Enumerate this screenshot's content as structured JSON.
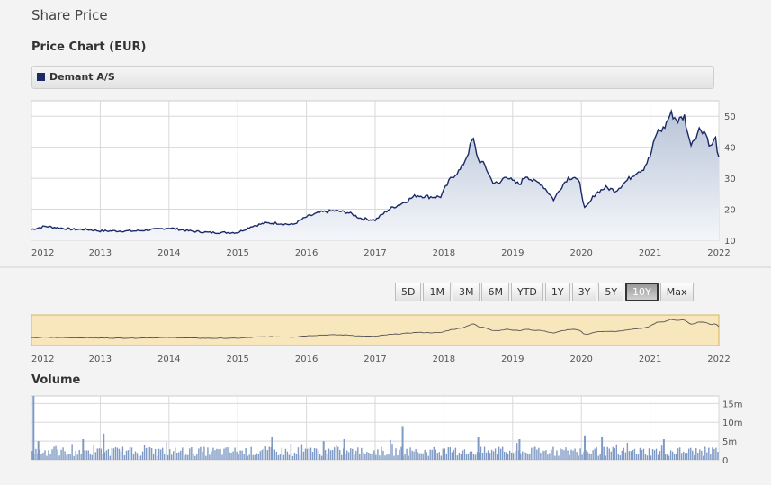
{
  "page": {
    "title": "Share Price",
    "chart_title": "Price Chart (EUR)",
    "volume_title": "Volume"
  },
  "legend": {
    "label": "Demant A/S",
    "color": "#1b2a66"
  },
  "periods": [
    {
      "label": "5D",
      "active": false
    },
    {
      "label": "1M",
      "active": false
    },
    {
      "label": "3M",
      "active": false
    },
    {
      "label": "6M",
      "active": false
    },
    {
      "label": "YTD",
      "active": false
    },
    {
      "label": "1Y",
      "active": false
    },
    {
      "label": "3Y",
      "active": false
    },
    {
      "label": "5Y",
      "active": false
    },
    {
      "label": "10Y",
      "active": true
    },
    {
      "label": "Max",
      "active": false
    }
  ],
  "colors": {
    "line": "#1b2a66",
    "area_top": "#b8c4d8",
    "area_bottom": "#f4f6fa",
    "navigator_bg": "#f8e6bd",
    "navigator_border": "#d9b45c",
    "volume_bar": "#7f9ac4",
    "grid": "#d8d8d8"
  },
  "chart_data": [
    {
      "type": "area",
      "title": "Price Chart (EUR)",
      "series_name": "Demant A/S",
      "x_ticks": [
        "2012",
        "2013",
        "2014",
        "2015",
        "2016",
        "2017",
        "2018",
        "2019",
        "2020",
        "2021",
        "2022"
      ],
      "y_ticks": [
        "10",
        "20",
        "30",
        "40",
        "50"
      ],
      "ylim": [
        10,
        55
      ],
      "xlim": [
        2012.0,
        2022.0
      ],
      "grid": true,
      "x": [
        2012.0,
        2012.2,
        2012.4,
        2012.6,
        2012.8,
        2013.0,
        2013.2,
        2013.5,
        2013.8,
        2014.0,
        2014.3,
        2014.6,
        2014.8,
        2015.0,
        2015.2,
        2015.4,
        2015.6,
        2015.8,
        2016.0,
        2016.2,
        2016.4,
        2016.6,
        2016.8,
        2017.0,
        2017.2,
        2017.4,
        2017.6,
        2017.8,
        2017.95,
        2018.1,
        2018.25,
        2018.35,
        2018.42,
        2018.5,
        2018.6,
        2018.7,
        2018.8,
        2018.9,
        2019.0,
        2019.1,
        2019.2,
        2019.3,
        2019.4,
        2019.5,
        2019.6,
        2019.7,
        2019.8,
        2019.9,
        2019.98,
        2020.05,
        2020.12,
        2020.2,
        2020.35,
        2020.5,
        2020.65,
        2020.8,
        2020.9,
        2021.0,
        2021.1,
        2021.2,
        2021.3,
        2021.4,
        2021.5,
        2021.58,
        2021.65,
        2021.72,
        2021.8,
        2021.88,
        2021.95,
        2022.0
      ],
      "values": [
        13.5,
        14.5,
        14.0,
        13.5,
        13.5,
        13.0,
        13.0,
        13.0,
        13.5,
        14.0,
        13.0,
        12.5,
        12.5,
        12.5,
        14.5,
        15.5,
        15.5,
        15.0,
        17.5,
        19.0,
        19.5,
        19.0,
        17.0,
        16.5,
        20.0,
        22.0,
        24.5,
        24.0,
        24.0,
        30.0,
        33.0,
        38.0,
        43.0,
        36.0,
        34.0,
        29.0,
        28.0,
        31.0,
        29.0,
        28.0,
        31.0,
        29.0,
        28.5,
        26.0,
        23.0,
        27.0,
        30.0,
        30.5,
        28.0,
        20.0,
        22.0,
        25.0,
        27.0,
        26.0,
        29.0,
        32.0,
        33.0,
        37.0,
        45.0,
        46.0,
        51.0,
        48.5,
        50.0,
        41.0,
        43.0,
        46.0,
        45.0,
        40.0,
        43.0,
        36.0
      ]
    },
    {
      "type": "line",
      "title": "Navigator",
      "x_ticks": [
        "2012",
        "2013",
        "2014",
        "2015",
        "2016",
        "2017",
        "2018",
        "2019",
        "2020",
        "2021",
        "2022"
      ],
      "note": "overview of the same price series"
    },
    {
      "type": "bar",
      "title": "Volume",
      "y_ticks": [
        "0",
        "5m",
        "10m",
        "15m"
      ],
      "ylim": [
        0,
        17
      ],
      "unit": "m",
      "spikes": [
        {
          "x": 2012.03,
          "value": 17
        },
        {
          "x": 2012.1,
          "value": 5
        },
        {
          "x": 2012.75,
          "value": 5.5
        },
        {
          "x": 2013.05,
          "value": 7
        },
        {
          "x": 2015.5,
          "value": 6
        },
        {
          "x": 2016.25,
          "value": 5
        },
        {
          "x": 2016.55,
          "value": 5.5
        },
        {
          "x": 2017.4,
          "value": 9
        },
        {
          "x": 2018.5,
          "value": 6
        },
        {
          "x": 2019.1,
          "value": 5.5
        },
        {
          "x": 2020.05,
          "value": 6.5
        },
        {
          "x": 2020.3,
          "value": 6
        },
        {
          "x": 2021.2,
          "value": 5.5
        }
      ],
      "baseline_range": [
        1,
        3.5
      ]
    }
  ]
}
